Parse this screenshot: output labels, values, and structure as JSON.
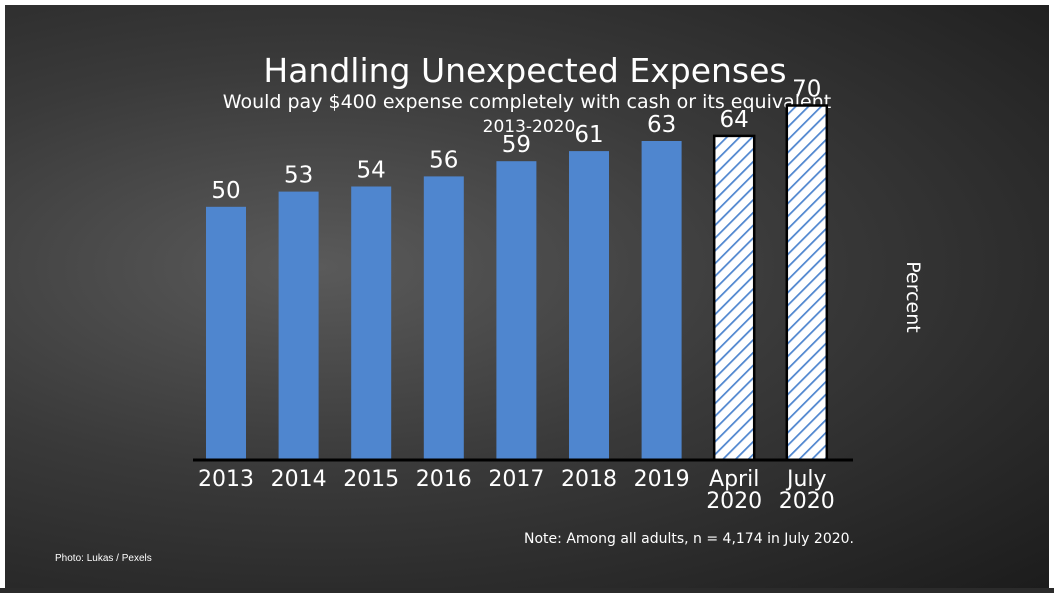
{
  "colors": {
    "bar_fill": "#4f86cf",
    "hatch_stroke": "#4f86cf",
    "hatch_bg": "#ffffff",
    "axis": "#000000",
    "text": "#ffffff"
  },
  "chart_data": {
    "type": "bar",
    "title": "Handling Unexpected Expenses",
    "subtitle": "Would pay $400 expense completely with cash or its equivalent",
    "period": "2013-2020",
    "xlabel": "",
    "ylabel": "Percent",
    "ylim": [
      0,
      78
    ],
    "categories": [
      [
        "2013"
      ],
      [
        "2014"
      ],
      [
        "2015"
      ],
      [
        "2016"
      ],
      [
        "2017"
      ],
      [
        "2018"
      ],
      [
        "2019"
      ],
      [
        "April",
        "2020"
      ],
      [
        "July",
        "2020"
      ]
    ],
    "values": [
      50,
      53,
      54,
      56,
      59,
      61,
      63,
      64,
      70
    ],
    "styles": [
      "solid",
      "solid",
      "solid",
      "solid",
      "solid",
      "solid",
      "solid",
      "hatched",
      "hatched"
    ],
    "note": "Note: Among all adults, n = 4,174 in July 2020.",
    "credit": "Photo:  Lukas / Pexels"
  }
}
